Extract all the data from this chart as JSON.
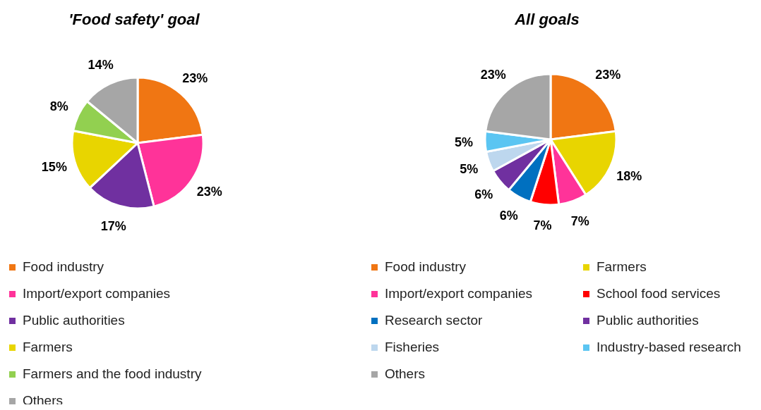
{
  "chart_data": [
    {
      "type": "pie",
      "title": "'Food safety' goal",
      "categories": [
        "Food industry",
        "Import/export companies",
        "Public authorities",
        "Farmers",
        "Farmers and the food industry",
        "Others"
      ],
      "values": [
        23,
        23,
        17,
        15,
        8,
        14
      ],
      "value_labels": [
        "23%",
        "23%",
        "17%",
        "15%",
        "8%",
        "14%"
      ],
      "colors": [
        "#f07613",
        "#ff3399",
        "#7030a0",
        "#e8d500",
        "#92d050",
        "#a6a6a6"
      ],
      "legend": "bottom"
    },
    {
      "type": "pie",
      "title": "All goals",
      "categories": [
        "Food industry",
        "Farmers",
        "Import/export companies",
        "School food services",
        "Research sector",
        "Public authorities",
        "Fisheries",
        "Industry-based research",
        "Others"
      ],
      "values": [
        23,
        18,
        7,
        7,
        6,
        6,
        5,
        5,
        23
      ],
      "value_labels": [
        "23%",
        "18%",
        "7%",
        "7%",
        "6%",
        "6%",
        "5%",
        "5%",
        "23%"
      ],
      "colors": [
        "#f07613",
        "#e8d500",
        "#ff3399",
        "#ff0000",
        "#0070c0",
        "#7030a0",
        "#bdd7ee",
        "#5bc5f2",
        "#a6a6a6"
      ],
      "legend": "bottom"
    }
  ]
}
